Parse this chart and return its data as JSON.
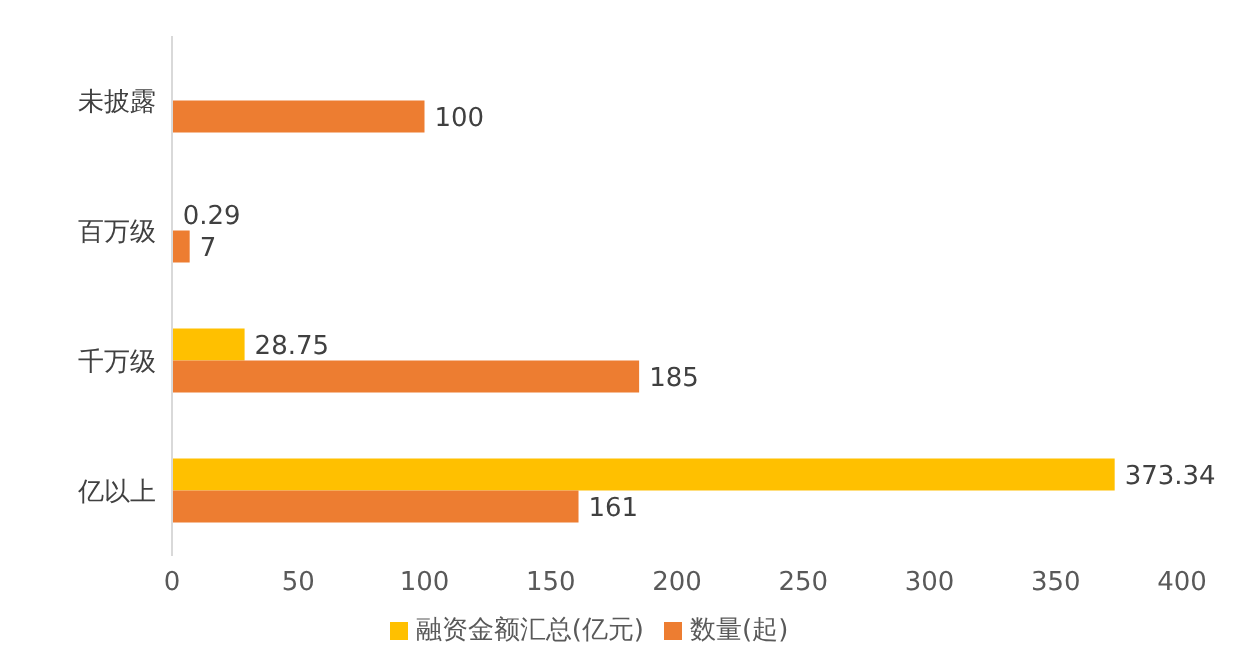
{
  "chart_data": {
    "type": "bar",
    "orientation": "horizontal",
    "categories": [
      "未披露",
      "百万级",
      "千万级",
      "亿以上"
    ],
    "series": [
      {
        "name": "融资金额汇总(亿元)",
        "color": "#ffc000",
        "values": [
          null,
          0.29,
          28.75,
          373.34
        ]
      },
      {
        "name": "数量(起)",
        "color": "#ed7d31",
        "values": [
          100,
          7,
          185,
          161
        ]
      }
    ],
    "xlim": [
      0,
      400
    ],
    "xticks": [
      0,
      50,
      100,
      150,
      200,
      250,
      300,
      350,
      400
    ],
    "grid": false,
    "legend": "bottom",
    "data_labels": true
  }
}
